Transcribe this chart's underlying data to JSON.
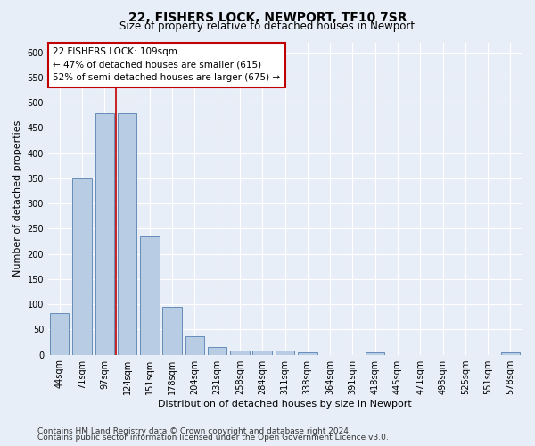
{
  "title_line1": "22, FISHERS LOCK, NEWPORT, TF10 7SR",
  "title_line2": "Size of property relative to detached houses in Newport",
  "xlabel": "Distribution of detached houses by size in Newport",
  "ylabel": "Number of detached properties",
  "categories": [
    "44sqm",
    "71sqm",
    "97sqm",
    "124sqm",
    "151sqm",
    "178sqm",
    "204sqm",
    "231sqm",
    "258sqm",
    "284sqm",
    "311sqm",
    "338sqm",
    "364sqm",
    "391sqm",
    "418sqm",
    "445sqm",
    "471sqm",
    "498sqm",
    "525sqm",
    "551sqm",
    "578sqm"
  ],
  "values": [
    82,
    350,
    480,
    480,
    235,
    95,
    37,
    16,
    8,
    8,
    8,
    5,
    0,
    0,
    5,
    0,
    0,
    0,
    0,
    0,
    5
  ],
  "bar_color": "#b8cce4",
  "bar_edge_color": "#5580b0",
  "vline_color": "#c00000",
  "annotation_text": "22 FISHERS LOCK: 109sqm\n← 47% of detached houses are smaller (615)\n52% of semi-detached houses are larger (675) →",
  "annotation_box_color": "#ffffff",
  "annotation_box_edgecolor": "#c00000",
  "ylim": [
    0,
    620
  ],
  "yticks": [
    0,
    50,
    100,
    150,
    200,
    250,
    300,
    350,
    400,
    450,
    500,
    550,
    600
  ],
  "footer_line1": "Contains HM Land Registry data © Crown copyright and database right 2024.",
  "footer_line2": "Contains public sector information licensed under the Open Government Licence v3.0.",
  "background_color": "#e8eef7",
  "plot_bg_color": "#e8eef7",
  "grid_color": "#ffffff",
  "title_fontsize": 10,
  "subtitle_fontsize": 8.5,
  "axis_label_fontsize": 8,
  "tick_fontsize": 7,
  "annotation_fontsize": 7.5,
  "footer_fontsize": 6.5
}
